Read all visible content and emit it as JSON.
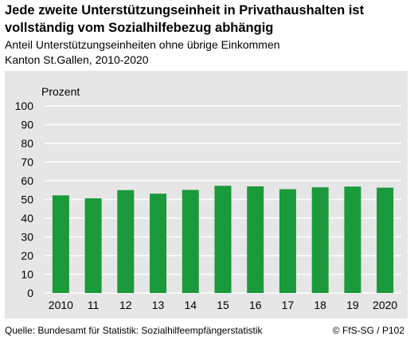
{
  "header": {
    "title": "Jede zweite Unterstützungseinheit in Privathaushalten ist vollständig vom Sozialhilfebezug abhängig",
    "subtitle_line1": "Anteil Unterstützungseinheiten ohne übrige Einkommen",
    "subtitle_line2": "Kanton St.Gallen, 2010-2020"
  },
  "footer": {
    "source": "Quelle: Bundesamt für Statistik: Sozialhilfeempfängerstatistik",
    "copyright": "© FfS-SG / P102"
  },
  "colors": {
    "bar": "#1a9a3a",
    "panel": "#e6e6e6",
    "grid": "#ffffff"
  },
  "chart_data": {
    "type": "bar",
    "categories": [
      "2010",
      "11",
      "12",
      "13",
      "14",
      "15",
      "16",
      "17",
      "18",
      "19",
      "2020"
    ],
    "values": [
      52.2,
      50.6,
      55.0,
      53.1,
      55.1,
      57.3,
      57.0,
      55.5,
      56.5,
      56.9,
      56.3
    ],
    "ylabel": "Prozent",
    "ylim": [
      0,
      100
    ],
    "yticks": [
      0,
      10,
      20,
      30,
      40,
      50,
      60,
      70,
      80,
      90,
      100
    ],
    "grid": true
  }
}
